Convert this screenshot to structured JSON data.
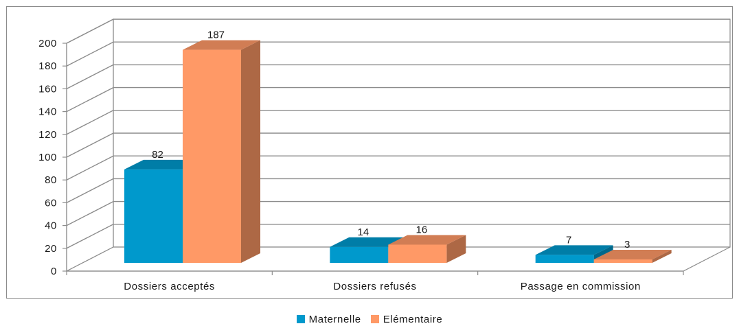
{
  "chart_data": {
    "type": "bar",
    "categories": [
      "Dossiers acceptés",
      "Dossiers refusés",
      "Passage en commission"
    ],
    "series": [
      {
        "name": "Maternelle",
        "values": [
          82,
          14,
          7
        ],
        "color": "#0099CC"
      },
      {
        "name": "Elémentaire",
        "values": [
          187,
          16,
          3
        ],
        "color": "#FF9966"
      }
    ],
    "ylim": [
      0,
      200
    ],
    "yticks": [
      "0",
      "20",
      "40",
      "60",
      "80",
      "100",
      "120",
      "140",
      "160",
      "180",
      "200"
    ],
    "grid": true,
    "legend_position": "bottom",
    "style": "3d-clustered-column"
  }
}
